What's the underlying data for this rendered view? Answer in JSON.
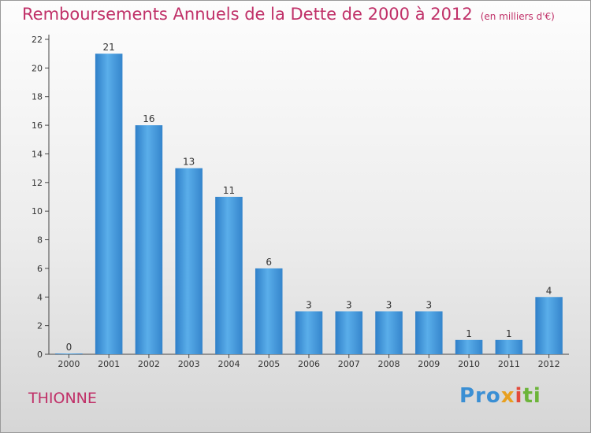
{
  "chart_data": {
    "type": "bar",
    "title": "Remboursements Annuels de la Dette de 2000 à 2012",
    "unit": "(en milliers d'€)",
    "categories": [
      "2000",
      "2001",
      "2002",
      "2003",
      "2004",
      "2005",
      "2006",
      "2007",
      "2008",
      "2009",
      "2010",
      "2011",
      "2012"
    ],
    "values": [
      0,
      21,
      16,
      13,
      11,
      6,
      3,
      3,
      3,
      3,
      1,
      1,
      4
    ],
    "ylim": [
      0,
      22
    ],
    "yticks": [
      0,
      2,
      4,
      6,
      8,
      10,
      12,
      14,
      16,
      18,
      20,
      22
    ],
    "xlabel": "",
    "ylabel": "",
    "grid": false,
    "bar_color": "#3b8fd6"
  },
  "footer": {
    "commune": "THIONNE"
  },
  "logo": {
    "text": "Proxiti",
    "p1": "Pro",
    "p2": "x",
    "p3": "i",
    "p4": "ti"
  }
}
